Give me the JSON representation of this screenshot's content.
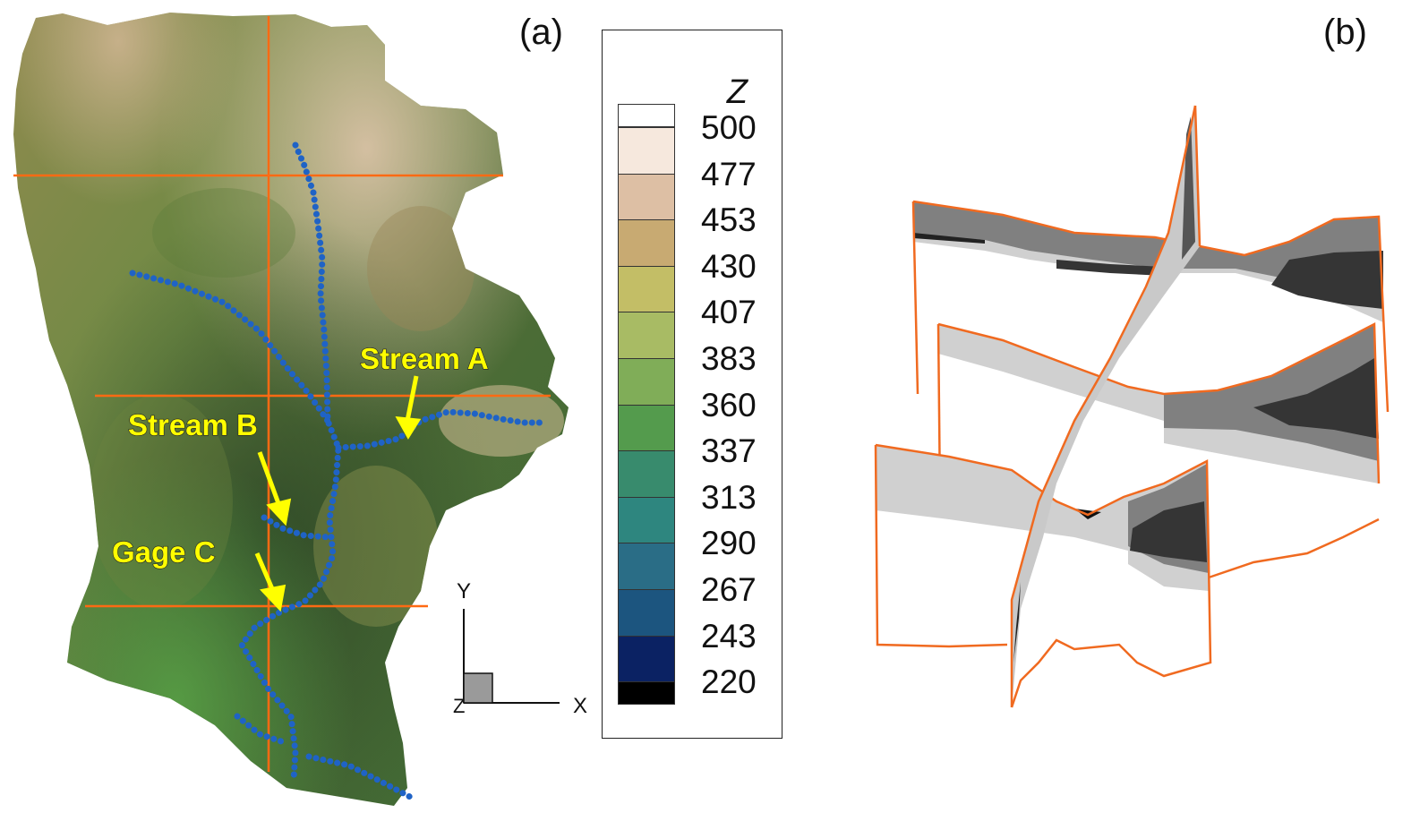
{
  "panels": {
    "a": {
      "label": "(a)"
    },
    "b": {
      "label": "(b)"
    }
  },
  "annotations": {
    "stream_a": "Stream A",
    "stream_b": "Stream B",
    "gage_c": "Gage C"
  },
  "axes_triad": {
    "y": "Y",
    "x": "X",
    "z": "Z"
  },
  "legend": {
    "title": "Z",
    "levels": [
      {
        "value": "500",
        "color": "#f6e8dd"
      },
      {
        "value": "477",
        "color": "#ddbfa4"
      },
      {
        "value": "453",
        "color": "#c8aa72"
      },
      {
        "value": "430",
        "color": "#c3be66"
      },
      {
        "value": "407",
        "color": "#a8bb64"
      },
      {
        "value": "383",
        "color": "#80ad58"
      },
      {
        "value": "360",
        "color": "#549b4d"
      },
      {
        "value": "337",
        "color": "#388b6d"
      },
      {
        "value": "313",
        "color": "#2e867f"
      },
      {
        "value": "290",
        "color": "#2a6d86"
      },
      {
        "value": "267",
        "color": "#1c557f"
      },
      {
        "value": "243",
        "color": "#0b2263"
      },
      {
        "value": "220",
        "color": "#000000"
      }
    ],
    "top_swatch_color": "#ffffff"
  },
  "colors": {
    "grid_line": "#ff6a13",
    "stream": "#1f63c6",
    "annotation": "#ffff00",
    "section_outline": "#f06a20"
  }
}
